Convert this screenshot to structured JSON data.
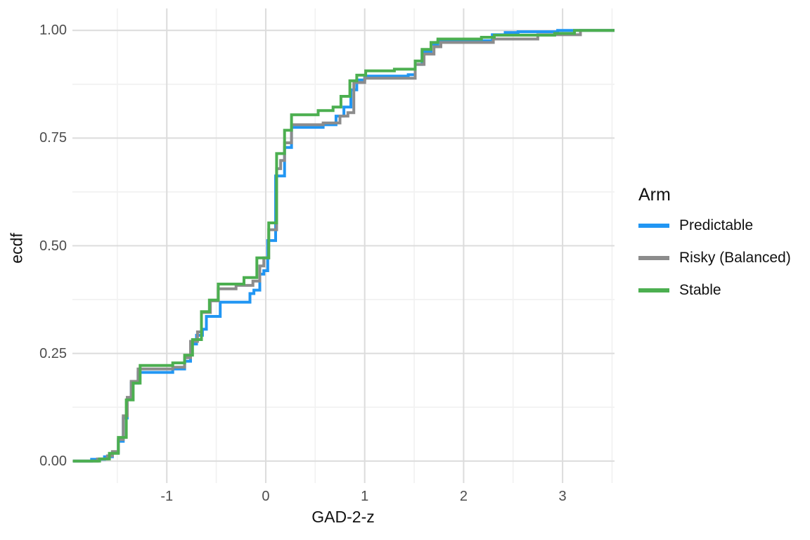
{
  "figure": {
    "x_axis_title": "GAD-2-z",
    "y_axis_title": "ecdf",
    "legend_title": "Arm"
  },
  "chart_data": {
    "type": "line",
    "subtype": "ecdf-step",
    "title": "",
    "xlabel": "GAD-2-z",
    "ylabel": "ecdf",
    "xlim": [
      -1.954,
      3.525
    ],
    "ylim": [
      -0.051,
      1.051
    ],
    "grid": "major-and-minor",
    "legend": {
      "title": "Arm",
      "position": "right"
    },
    "xticks": [
      {
        "value": -1,
        "label": "-1"
      },
      {
        "value": 0,
        "label": "0"
      },
      {
        "value": 1,
        "label": "1"
      },
      {
        "value": 2,
        "label": "2"
      },
      {
        "value": 3,
        "label": "3"
      }
    ],
    "yticks": [
      {
        "value": 0.0,
        "label": "0.00"
      },
      {
        "value": 0.25,
        "label": "0.25"
      },
      {
        "value": 0.5,
        "label": "0.50"
      },
      {
        "value": 0.75,
        "label": "0.75"
      },
      {
        "value": 1.0,
        "label": "1.00"
      }
    ],
    "x_minor": [
      -1.5,
      -0.5,
      0.5,
      1.5,
      2.5,
      3.5
    ],
    "y_minor": [
      0.125,
      0.375,
      0.625,
      0.875
    ],
    "series": [
      {
        "name": "Predictable",
        "color": "#2196F3",
        "points": [
          [
            -1.95,
            0.0
          ],
          [
            -1.76,
            0.004
          ],
          [
            -1.63,
            0.01
          ],
          [
            -1.55,
            0.02
          ],
          [
            -1.49,
            0.046
          ],
          [
            -1.44,
            0.1
          ],
          [
            -1.4,
            0.143
          ],
          [
            -1.36,
            0.181
          ],
          [
            -1.29,
            0.206
          ],
          [
            -0.94,
            0.214
          ],
          [
            -0.82,
            0.232
          ],
          [
            -0.76,
            0.272
          ],
          [
            -0.7,
            0.292
          ],
          [
            -0.64,
            0.306
          ],
          [
            -0.6,
            0.336
          ],
          [
            -0.46,
            0.369
          ],
          [
            -0.16,
            0.389
          ],
          [
            -0.12,
            0.397
          ],
          [
            -0.06,
            0.434
          ],
          [
            -0.02,
            0.442
          ],
          [
            0.02,
            0.512
          ],
          [
            0.1,
            0.662
          ],
          [
            0.19,
            0.728
          ],
          [
            0.26,
            0.775
          ],
          [
            0.58,
            0.781
          ],
          [
            0.71,
            0.801
          ],
          [
            0.79,
            0.822
          ],
          [
            0.86,
            0.862
          ],
          [
            0.92,
            0.885
          ],
          [
            1.0,
            0.894
          ],
          [
            1.44,
            0.897
          ],
          [
            1.51,
            0.921
          ],
          [
            1.58,
            0.951
          ],
          [
            1.67,
            0.968
          ],
          [
            1.74,
            0.976
          ],
          [
            2.29,
            0.99
          ],
          [
            2.42,
            0.995
          ],
          [
            2.55,
            0.997
          ],
          [
            2.95,
            1.0
          ],
          [
            3.53,
            1.0
          ]
        ]
      },
      {
        "name": "Risky (Balanced)",
        "color": "#8C8C8C",
        "points": [
          [
            -1.95,
            0.0
          ],
          [
            -1.7,
            0.005
          ],
          [
            -1.6,
            0.012
          ],
          [
            -1.55,
            0.022
          ],
          [
            -1.49,
            0.05
          ],
          [
            -1.44,
            0.105
          ],
          [
            -1.4,
            0.148
          ],
          [
            -1.36,
            0.185
          ],
          [
            -1.29,
            0.214
          ],
          [
            -0.94,
            0.218
          ],
          [
            -0.82,
            0.24
          ],
          [
            -0.76,
            0.278
          ],
          [
            -0.69,
            0.3
          ],
          [
            -0.65,
            0.345
          ],
          [
            -0.56,
            0.372
          ],
          [
            -0.48,
            0.4
          ],
          [
            -0.3,
            0.408
          ],
          [
            -0.13,
            0.418
          ],
          [
            -0.06,
            0.453
          ],
          [
            -0.02,
            0.472
          ],
          [
            0.03,
            0.537
          ],
          [
            0.11,
            0.679
          ],
          [
            0.15,
            0.698
          ],
          [
            0.19,
            0.739
          ],
          [
            0.26,
            0.781
          ],
          [
            0.58,
            0.785
          ],
          [
            0.75,
            0.801
          ],
          [
            0.83,
            0.809
          ],
          [
            0.89,
            0.879
          ],
          [
            1.0,
            0.889
          ],
          [
            1.51,
            0.921
          ],
          [
            1.6,
            0.945
          ],
          [
            1.7,
            0.962
          ],
          [
            1.77,
            0.972
          ],
          [
            2.3,
            0.98
          ],
          [
            2.75,
            0.99
          ],
          [
            3.18,
            1.0
          ],
          [
            3.53,
            1.0
          ]
        ]
      },
      {
        "name": "Stable",
        "color": "#4CAF50",
        "points": [
          [
            -1.95,
            0.0
          ],
          [
            -1.68,
            0.005
          ],
          [
            -1.58,
            0.018
          ],
          [
            -1.49,
            0.055
          ],
          [
            -1.41,
            0.142
          ],
          [
            -1.34,
            0.181
          ],
          [
            -1.27,
            0.222
          ],
          [
            -0.94,
            0.228
          ],
          [
            -0.82,
            0.246
          ],
          [
            -0.74,
            0.282
          ],
          [
            -0.65,
            0.347
          ],
          [
            -0.57,
            0.374
          ],
          [
            -0.48,
            0.411
          ],
          [
            -0.22,
            0.426
          ],
          [
            -0.09,
            0.472
          ],
          [
            0.03,
            0.553
          ],
          [
            0.11,
            0.714
          ],
          [
            0.19,
            0.768
          ],
          [
            0.26,
            0.804
          ],
          [
            0.53,
            0.814
          ],
          [
            0.68,
            0.822
          ],
          [
            0.76,
            0.847
          ],
          [
            0.85,
            0.883
          ],
          [
            0.92,
            0.896
          ],
          [
            1.01,
            0.906
          ],
          [
            1.3,
            0.91
          ],
          [
            1.51,
            0.929
          ],
          [
            1.58,
            0.956
          ],
          [
            1.67,
            0.972
          ],
          [
            1.74,
            0.98
          ],
          [
            2.18,
            0.984
          ],
          [
            2.31,
            0.989
          ],
          [
            2.92,
            0.993
          ],
          [
            3.12,
            1.0
          ],
          [
            3.53,
            1.0
          ]
        ]
      }
    ]
  }
}
